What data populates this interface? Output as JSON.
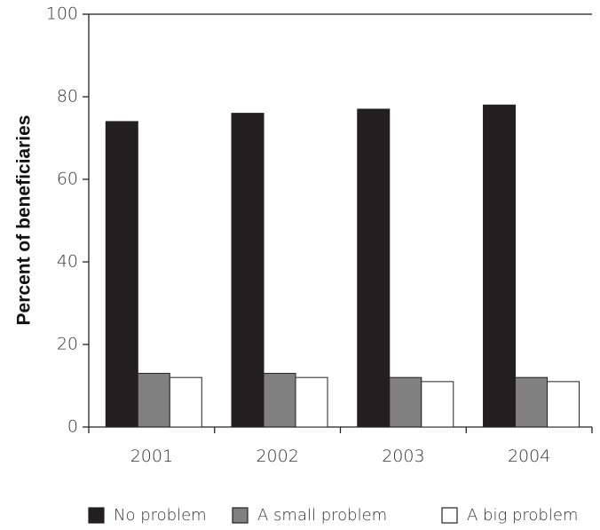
{
  "chart_data": {
    "type": "bar",
    "title": "",
    "xlabel": "",
    "ylabel": "Percent of beneficiaries",
    "categories": [
      "2001",
      "2002",
      "2003",
      "2004"
    ],
    "ylim": [
      0,
      100
    ],
    "yticks": [
      0,
      20,
      40,
      60,
      80,
      100
    ],
    "grid": false,
    "legend_position": "bottom",
    "series": [
      {
        "name": "No problem",
        "color": "#231f20",
        "values": [
          74,
          76,
          77,
          78
        ]
      },
      {
        "name": "A small problem",
        "color": "#808080",
        "values": [
          13,
          13,
          12,
          12
        ]
      },
      {
        "name": "A big problem",
        "color": "#ffffff",
        "values": [
          12,
          12,
          11,
          11
        ]
      }
    ]
  }
}
